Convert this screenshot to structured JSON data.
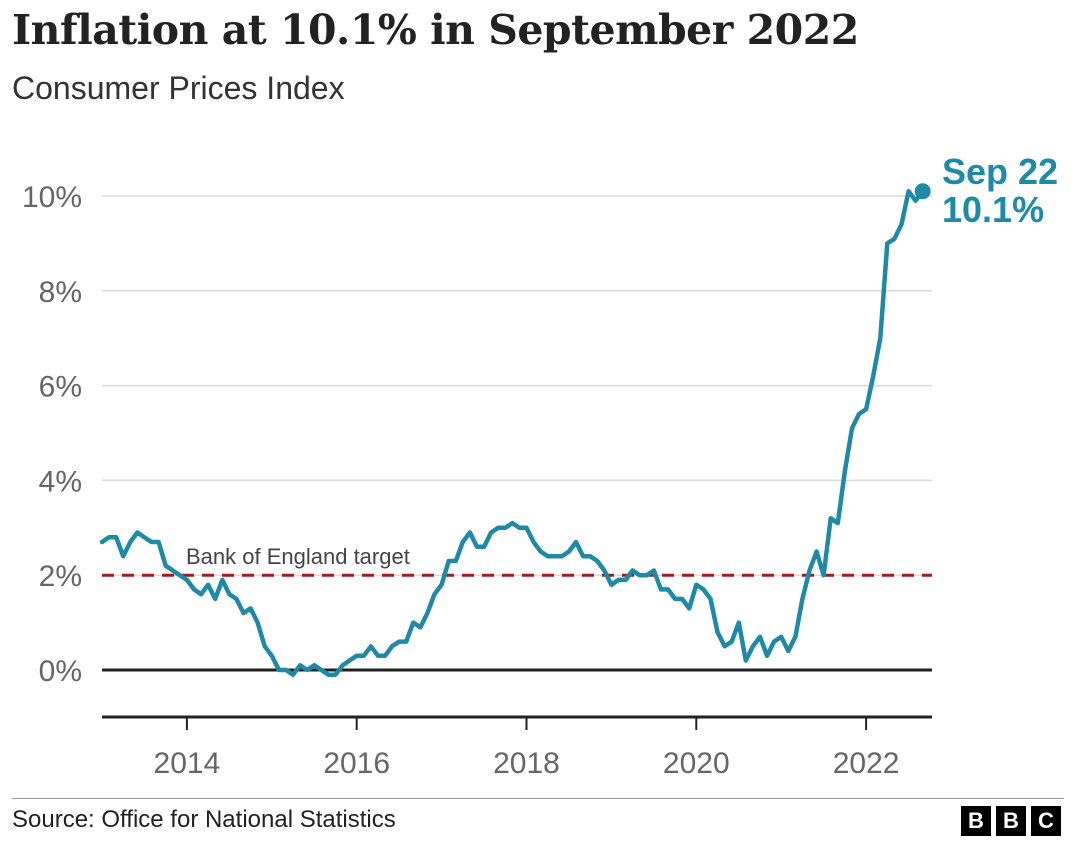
{
  "header": {
    "title": "Inflation at 10.1% in September 2022",
    "subtitle": "Consumer Prices Index"
  },
  "footer": {
    "source": "Source: Office for National Statistics",
    "logo_letters": [
      "B",
      "B",
      "C"
    ]
  },
  "colors": {
    "series": "#1f8aa6",
    "target_line": "#a31b1b",
    "zero_line": "#222222",
    "grid": "#d9d9d9"
  },
  "chart_data": {
    "type": "line",
    "title": "Inflation at 10.1% in September 2022",
    "subtitle": "Consumer Prices Index",
    "x_ticks": [
      "2014",
      "2016",
      "2018",
      "2020",
      "2022"
    ],
    "y_ticks": [
      "0%",
      "2%",
      "4%",
      "6%",
      "8%",
      "10%"
    ],
    "ylim": [
      -1,
      10.5
    ],
    "grid": true,
    "reference_line": {
      "label": "Bank of England target",
      "value": 2
    },
    "end_label": {
      "line1": "Sep 22",
      "line2": "10.1%"
    },
    "series": [
      {
        "start": "2013-01",
        "frequency": "monthly",
        "values": [
          2.7,
          2.8,
          2.8,
          2.4,
          2.7,
          2.9,
          2.8,
          2.7,
          2.7,
          2.2,
          2.1,
          2.0,
          1.9,
          1.7,
          1.6,
          1.8,
          1.5,
          1.9,
          1.6,
          1.5,
          1.2,
          1.3,
          1.0,
          0.5,
          0.3,
          0.0,
          0.0,
          -0.1,
          0.1,
          0.0,
          0.1,
          0.0,
          -0.1,
          -0.1,
          0.1,
          0.2,
          0.3,
          0.3,
          0.5,
          0.3,
          0.3,
          0.5,
          0.6,
          0.6,
          1.0,
          0.9,
          1.2,
          1.6,
          1.8,
          2.3,
          2.3,
          2.7,
          2.9,
          2.6,
          2.6,
          2.9,
          3.0,
          3.0,
          3.1,
          3.0,
          3.0,
          2.7,
          2.5,
          2.4,
          2.4,
          2.4,
          2.5,
          2.7,
          2.4,
          2.4,
          2.3,
          2.1,
          1.8,
          1.9,
          1.9,
          2.1,
          2.0,
          2.0,
          2.1,
          1.7,
          1.7,
          1.5,
          1.5,
          1.3,
          1.8,
          1.7,
          1.5,
          0.8,
          0.5,
          0.6,
          1.0,
          0.2,
          0.5,
          0.7,
          0.3,
          0.6,
          0.7,
          0.4,
          0.7,
          1.5,
          2.1,
          2.5,
          2.0,
          3.2,
          3.1,
          4.2,
          5.1,
          5.4,
          5.5,
          6.2,
          7.0,
          9.0,
          9.1,
          9.4,
          10.1,
          9.9,
          10.1
        ]
      }
    ]
  }
}
